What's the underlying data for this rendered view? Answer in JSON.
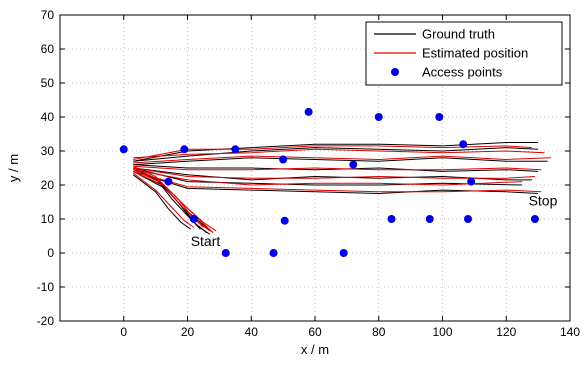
{
  "chart_data": {
    "type": "line",
    "title": "",
    "xlabel": "x / m",
    "ylabel": "y / m",
    "xlim": [
      -20,
      140
    ],
    "ylim": [
      -20,
      70
    ],
    "xticks": [
      0,
      20,
      40,
      60,
      80,
      100,
      120,
      140
    ],
    "yticks": [
      -20,
      -10,
      0,
      10,
      20,
      30,
      40,
      50,
      60,
      70
    ],
    "grid": true,
    "legend_position": "top-right",
    "legend": [
      {
        "label": "Ground truth",
        "color": "#000000",
        "marker": "line"
      },
      {
        "label": "Estimated position",
        "color": "#e00000",
        "marker": "line"
      },
      {
        "label": "Access points",
        "color": "#0000e6",
        "marker": "dot"
      }
    ],
    "annotations": [
      {
        "text": "Start",
        "x": 21,
        "y": 2
      },
      {
        "text": "Stop",
        "x": 127,
        "y": 14
      }
    ],
    "access_points": [
      {
        "x": 0,
        "y": 30.5
      },
      {
        "x": 19,
        "y": 30.5
      },
      {
        "x": 35,
        "y": 30.5
      },
      {
        "x": 14,
        "y": 21
      },
      {
        "x": 22,
        "y": 10
      },
      {
        "x": 32,
        "y": 0
      },
      {
        "x": 47,
        "y": 0
      },
      {
        "x": 50.5,
        "y": 9.5
      },
      {
        "x": 50,
        "y": 27.5
      },
      {
        "x": 58,
        "y": 41.5
      },
      {
        "x": 69,
        "y": 0
      },
      {
        "x": 72,
        "y": 26
      },
      {
        "x": 80,
        "y": 40
      },
      {
        "x": 84,
        "y": 10
      },
      {
        "x": 96,
        "y": 10
      },
      {
        "x": 99,
        "y": 40
      },
      {
        "x": 106.5,
        "y": 32
      },
      {
        "x": 109,
        "y": 21
      },
      {
        "x": 108,
        "y": 10
      },
      {
        "x": 129,
        "y": 10
      }
    ],
    "series": [
      {
        "name": "Ground truth",
        "color": "#000000",
        "paths": [
          [
            [
              3,
              27
            ],
            [
              20,
              28.5
            ],
            [
              40,
              30
            ],
            [
              60,
              31
            ],
            [
              80,
              30.5
            ],
            [
              100,
              30
            ],
            [
              120,
              31
            ],
            [
              130,
              30.5
            ]
          ],
          [
            [
              3,
              27
            ],
            [
              20,
              30
            ],
            [
              40,
              31
            ],
            [
              60,
              32
            ],
            [
              80,
              32
            ],
            [
              100,
              31.5
            ],
            [
              120,
              32.5
            ],
            [
              130,
              32.5
            ]
          ],
          [
            [
              3,
              26
            ],
            [
              20,
              27
            ],
            [
              40,
              28
            ],
            [
              60,
              27.5
            ],
            [
              80,
              27
            ],
            [
              100,
              28
            ],
            [
              120,
              27
            ],
            [
              133,
              27
            ]
          ],
          [
            [
              3,
              26
            ],
            [
              20,
              25
            ],
            [
              40,
              25
            ],
            [
              60,
              24.5
            ],
            [
              80,
              25
            ],
            [
              100,
              24
            ],
            [
              120,
              24.5
            ],
            [
              130,
              24
            ]
          ],
          [
            [
              3,
              25
            ],
            [
              20,
              23
            ],
            [
              40,
              21.5
            ],
            [
              60,
              22.5
            ],
            [
              80,
              22
            ],
            [
              100,
              22.5
            ],
            [
              120,
              21.5
            ],
            [
              128,
              21.5
            ]
          ],
          [
            [
              3,
              25
            ],
            [
              20,
              21
            ],
            [
              40,
              20.5
            ],
            [
              60,
              20
            ],
            [
              80,
              20
            ],
            [
              100,
              20.5
            ],
            [
              125,
              20
            ]
          ],
          [
            [
              3,
              24
            ],
            [
              20,
              19
            ],
            [
              40,
              18.5
            ],
            [
              60,
              18
            ],
            [
              80,
              17.5
            ],
            [
              100,
              18.5
            ],
            [
              120,
              18
            ],
            [
              130,
              17.5
            ]
          ],
          [
            [
              3,
              25
            ],
            [
              10,
              22
            ],
            [
              15,
              16
            ],
            [
              20,
              11
            ],
            [
              24,
              7
            ]
          ],
          [
            [
              3,
              25
            ],
            [
              11,
              21
            ],
            [
              17,
              15
            ],
            [
              22,
              9
            ],
            [
              26,
              6
            ]
          ],
          [
            [
              3,
              24
            ],
            [
              12,
              20
            ],
            [
              18,
              14
            ],
            [
              23,
              8
            ],
            [
              27,
              5.5
            ]
          ],
          [
            [
              3,
              24
            ],
            [
              13,
              19
            ],
            [
              19,
              13
            ],
            [
              24,
              9
            ],
            [
              28,
              6
            ]
          ],
          [
            [
              3,
              23
            ],
            [
              10,
              18
            ],
            [
              14,
              13
            ],
            [
              18,
              9
            ],
            [
              21,
              7
            ]
          ]
        ]
      },
      {
        "name": "Estimated position",
        "color": "#e00000",
        "paths": [
          [
            [
              3,
              28
            ],
            [
              20,
              29
            ],
            [
              40,
              29.5
            ],
            [
              60,
              30.5
            ],
            [
              80,
              30
            ],
            [
              100,
              29.5
            ],
            [
              120,
              30
            ],
            [
              132,
              29.5
            ]
          ],
          [
            [
              3,
              27.5
            ],
            [
              20,
              30.5
            ],
            [
              40,
              30.5
            ],
            [
              60,
              31.5
            ],
            [
              80,
              31.5
            ],
            [
              100,
              31
            ],
            [
              120,
              31.5
            ],
            [
              128,
              31
            ]
          ],
          [
            [
              3,
              26.5
            ],
            [
              20,
              27.5
            ],
            [
              40,
              28.5
            ],
            [
              60,
              28
            ],
            [
              80,
              27.5
            ],
            [
              100,
              28.5
            ],
            [
              120,
              27.5
            ],
            [
              134,
              28
            ]
          ],
          [
            [
              3,
              25.5
            ],
            [
              20,
              24.5
            ],
            [
              40,
              24.5
            ],
            [
              60,
              25
            ],
            [
              80,
              24.5
            ],
            [
              100,
              24.5
            ],
            [
              120,
              25
            ],
            [
              131,
              24.5
            ]
          ],
          [
            [
              3,
              25
            ],
            [
              20,
              22.5
            ],
            [
              40,
              22
            ],
            [
              60,
              22
            ],
            [
              80,
              22.5
            ],
            [
              100,
              22
            ],
            [
              120,
              22
            ],
            [
              129,
              22.5
            ]
          ],
          [
            [
              3,
              24.5
            ],
            [
              20,
              21.5
            ],
            [
              40,
              20
            ],
            [
              60,
              20.5
            ],
            [
              80,
              20.5
            ],
            [
              100,
              20
            ],
            [
              125,
              21
            ]
          ],
          [
            [
              3,
              24
            ],
            [
              20,
              19.5
            ],
            [
              40,
              19
            ],
            [
              60,
              18.5
            ],
            [
              80,
              18
            ],
            [
              100,
              18
            ],
            [
              120,
              18.5
            ],
            [
              131,
              18
            ]
          ],
          [
            [
              3,
              25.5
            ],
            [
              10,
              22.5
            ],
            [
              15,
              17
            ],
            [
              20,
              12
            ],
            [
              25,
              7.5
            ]
          ],
          [
            [
              3,
              25
            ],
            [
              11,
              21.5
            ],
            [
              17,
              16
            ],
            [
              22,
              10
            ],
            [
              27,
              6.5
            ]
          ],
          [
            [
              3,
              24.5
            ],
            [
              12,
              20.5
            ],
            [
              18,
              15
            ],
            [
              24,
              9.5
            ],
            [
              28,
              6
            ]
          ],
          [
            [
              3,
              24
            ],
            [
              13,
              19.5
            ],
            [
              19,
              14
            ],
            [
              25,
              9
            ],
            [
              29,
              6.5
            ]
          ],
          [
            [
              3,
              23.5
            ],
            [
              10,
              18.5
            ],
            [
              15,
              13.5
            ],
            [
              19,
              9.5
            ],
            [
              22,
              7.5
            ]
          ]
        ]
      }
    ]
  }
}
